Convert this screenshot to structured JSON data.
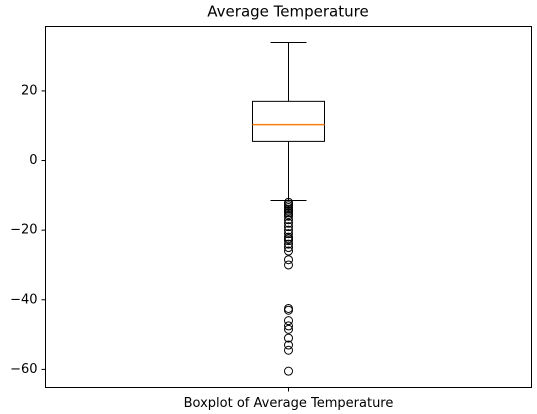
{
  "chart_data": {
    "type": "box",
    "title": "Average Temperature",
    "categories": [
      "Boxplot of Average Temperature"
    ],
    "boxes": [
      {
        "whisker_low": -11.5,
        "q1": 5.5,
        "median": 10.3,
        "q3": 17.0,
        "whisker_high": 33.9,
        "outliers": [
          -12,
          -12.5,
          -13,
          -13.5,
          -14,
          -14.5,
          -15,
          -15.5,
          -16,
          -17,
          -18,
          -19,
          -20,
          -21,
          -22,
          -22.5,
          -23,
          -24,
          -25,
          -26,
          -28.5,
          -30,
          -42.5,
          -43,
          -46,
          -47.5,
          -48.5,
          -51,
          -53,
          -54.5,
          -60.5
        ]
      }
    ],
    "color": "#000000",
    "median_color": "#ff7f0e",
    "ylim": [
      -65.2,
      38.5
    ],
    "yticks": [
      {
        "value": -60,
        "label": "−60"
      },
      {
        "value": -40,
        "label": "−40"
      },
      {
        "value": -20,
        "label": "−20"
      },
      0,
      20
    ],
    "grid": false
  }
}
